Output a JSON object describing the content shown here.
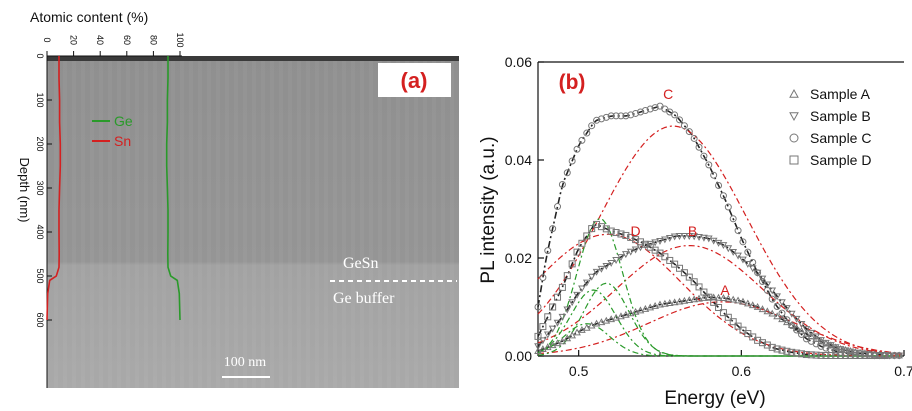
{
  "chart_data": [
    {
      "panel": "(a)",
      "type": "line",
      "xlabel": "Atomic content (%)",
      "ylabel": "Depth (nm)",
      "xlim": [
        0,
        100
      ],
      "ylim": [
        600,
        0
      ],
      "x_ticks": [
        "0",
        "20",
        "40",
        "60",
        "80",
        "100"
      ],
      "y_ticks": [
        "0",
        "100",
        "200",
        "300",
        "400",
        "500",
        "600"
      ],
      "series": [
        {
          "name": "Ge",
          "color": "#2a9a2a",
          "points": [
            [
              91,
              0
            ],
            [
              91,
              50
            ],
            [
              90.5,
              100
            ],
            [
              90.5,
              150
            ],
            [
              90,
              200
            ],
            [
              90,
              250
            ],
            [
              90.5,
              300
            ],
            [
              91,
              350
            ],
            [
              91,
              400
            ],
            [
              90.8,
              450
            ],
            [
              91,
              480
            ],
            [
              93,
              500
            ],
            [
              98,
              510
            ],
            [
              99.5,
              540
            ],
            [
              100,
              600
            ]
          ]
        },
        {
          "name": "Sn",
          "color": "#d42020",
          "points": [
            [
              9,
              0
            ],
            [
              9,
              50
            ],
            [
              9.5,
              100
            ],
            [
              9.5,
              150
            ],
            [
              10,
              200
            ],
            [
              10,
              250
            ],
            [
              9.5,
              300
            ],
            [
              9,
              350
            ],
            [
              9,
              400
            ],
            [
              9.2,
              450
            ],
            [
              9,
              480
            ],
            [
              7,
              500
            ],
            [
              2,
              510
            ],
            [
              0.5,
              540
            ],
            [
              0,
              600
            ]
          ]
        }
      ],
      "annotations": {
        "layer_top": "GeSn",
        "layer_bottom": "Ge buffer",
        "scale_bar": "100 nm"
      }
    },
    {
      "panel": "(b)",
      "type": "scatter",
      "xlabel": "Energy (eV)",
      "ylabel": "PL intensity (a.u.)",
      "xlim": [
        0.475,
        0.7
      ],
      "ylim": [
        0,
        0.06
      ],
      "x_ticks": [
        "0.5",
        "0.6",
        "0.7"
      ],
      "y_ticks": [
        "0.00",
        "0.02",
        "0.04",
        "0.06"
      ],
      "legend": {
        "position": "top-right",
        "entries": [
          {
            "label": "Sample A",
            "marker": "triangle-up"
          },
          {
            "label": "Sample B",
            "marker": "triangle-down"
          },
          {
            "label": "Sample C",
            "marker": "circle"
          },
          {
            "label": "Sample D",
            "marker": "square"
          }
        ]
      },
      "curve_labels": [
        {
          "text": "A",
          "x": 0.59,
          "y": 0.0125
        },
        {
          "text": "B",
          "x": 0.57,
          "y": 0.0245
        },
        {
          "text": "C",
          "x": 0.555,
          "y": 0.0525
        },
        {
          "text": "D",
          "x": 0.535,
          "y": 0.0245
        }
      ],
      "series": [
        {
          "name": "Sample A",
          "x": [
            0.475,
            0.49,
            0.5,
            0.51,
            0.52,
            0.53,
            0.54,
            0.55,
            0.56,
            0.57,
            0.58,
            0.59,
            0.6,
            0.61,
            0.62,
            0.63,
            0.64,
            0.65,
            0.66,
            0.67,
            0.68,
            0.69
          ],
          "y": [
            0.001,
            0.003,
            0.005,
            0.0065,
            0.0075,
            0.0085,
            0.0095,
            0.0105,
            0.011,
            0.0115,
            0.012,
            0.0118,
            0.0112,
            0.01,
            0.0085,
            0.0065,
            0.0045,
            0.0028,
            0.0015,
            0.0008,
            0.0004,
            0.0002
          ]
        },
        {
          "name": "Sample B",
          "x": [
            0.475,
            0.49,
            0.5,
            0.51,
            0.52,
            0.53,
            0.54,
            0.55,
            0.56,
            0.57,
            0.58,
            0.59,
            0.6,
            0.61,
            0.62,
            0.63,
            0.64,
            0.65,
            0.66,
            0.67,
            0.68
          ],
          "y": [
            0.002,
            0.008,
            0.013,
            0.017,
            0.019,
            0.021,
            0.0225,
            0.0235,
            0.0245,
            0.0245,
            0.024,
            0.0225,
            0.02,
            0.017,
            0.013,
            0.009,
            0.0055,
            0.003,
            0.0015,
            0.0007,
            0.0003
          ]
        },
        {
          "name": "Sample C",
          "x": [
            0.475,
            0.48,
            0.49,
            0.5,
            0.51,
            0.52,
            0.53,
            0.54,
            0.55,
            0.56,
            0.57,
            0.58,
            0.59,
            0.6,
            0.61,
            0.62,
            0.63,
            0.64,
            0.65,
            0.66,
            0.67
          ],
          "y": [
            0.01,
            0.02,
            0.035,
            0.043,
            0.048,
            0.049,
            0.049,
            0.05,
            0.051,
            0.049,
            0.045,
            0.039,
            0.032,
            0.024,
            0.017,
            0.011,
            0.0065,
            0.0035,
            0.0018,
            0.0008,
            0.0003
          ]
        },
        {
          "name": "Sample D",
          "x": [
            0.475,
            0.49,
            0.5,
            0.51,
            0.52,
            0.53,
            0.54,
            0.55,
            0.56,
            0.57,
            0.58,
            0.59,
            0.6,
            0.61,
            0.62,
            0.63,
            0.64,
            0.65
          ],
          "y": [
            0.004,
            0.014,
            0.022,
            0.027,
            0.0255,
            0.0245,
            0.023,
            0.021,
            0.0185,
            0.0155,
            0.012,
            0.0085,
            0.0055,
            0.0032,
            0.0016,
            0.0008,
            0.0003,
            0.0001
          ]
        }
      ]
    }
  ],
  "panel_a": {
    "label": "(a)",
    "x_title": "Atomic content (%)",
    "y_title": "Depth (nm)",
    "legend_ge": "Ge",
    "legend_sn": "Sn",
    "label_gesn": "GeSn",
    "label_buffer": "Ge buffer",
    "scale_bar": "100 nm",
    "colors": {
      "ge": "#2a9a2a",
      "sn": "#d42020",
      "label": "#d42020"
    }
  },
  "panel_b": {
    "label": "(b)",
    "x_title": "Energy (eV)",
    "y_title": "PL intensity (a.u.)",
    "colors": {
      "fit_dark": "#222222",
      "fit_red": "#d42020",
      "fit_green": "#2a9a2a",
      "marker": "#777777",
      "label": "#d42020"
    }
  }
}
